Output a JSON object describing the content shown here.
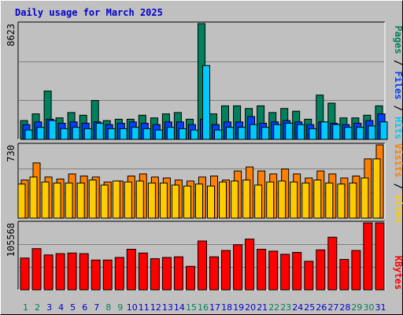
{
  "title": "Daily usage for March 2025",
  "colors": {
    "background": "#c0c0c0",
    "plot": "#c0c0c0",
    "title": "#0000cc",
    "hits": "#00805c",
    "files": "#0040ff",
    "pages": "#00c8ff",
    "visits": "#ff8000",
    "sites": "#ffcc00",
    "kbytes": "#ff0000",
    "weekend_day": "#00805c",
    "weekday": "#0000cc"
  },
  "chart_data": [
    {
      "type": "bar",
      "categories": [
        "1",
        "2",
        "3",
        "4",
        "5",
        "6",
        "7",
        "8",
        "9",
        "10",
        "11",
        "12",
        "13",
        "14",
        "15",
        "16",
        "17",
        "18",
        "19",
        "20",
        "21",
        "22",
        "23",
        "24",
        "25",
        "26",
        "27",
        "28",
        "29",
        "30",
        "31"
      ],
      "weekend_days": [
        "1",
        "2",
        "8",
        "9",
        "15",
        "16",
        "22",
        "23",
        "29",
        "30"
      ],
      "ylim": [
        0,
        8623
      ],
      "ytick_label": "8623",
      "legend": [
        "Hits",
        "Files",
        "Pages"
      ],
      "series": [
        {
          "name": "Hits",
          "values": [
            1400,
            1900,
            3600,
            1600,
            2000,
            1800,
            2900,
            1400,
            1500,
            1500,
            1800,
            1600,
            1900,
            2000,
            1500,
            8623,
            1900,
            2500,
            2500,
            2300,
            2500,
            2000,
            2300,
            2100,
            1500,
            3300,
            2700,
            1600,
            1600,
            1800,
            2500
          ]
        },
        {
          "name": "Files",
          "values": [
            1100,
            1300,
            1500,
            1200,
            1300,
            1200,
            1300,
            1100,
            1200,
            1300,
            1200,
            1100,
            1300,
            1300,
            1100,
            1500,
            1100,
            1300,
            1300,
            1700,
            1200,
            1300,
            1400,
            1300,
            1100,
            1300,
            1200,
            1100,
            1200,
            1400,
            1900
          ]
        },
        {
          "name": "Pages",
          "values": [
            700,
            900,
            1400,
            800,
            900,
            800,
            1200,
            800,
            800,
            900,
            800,
            700,
            900,
            800,
            700,
            5500,
            700,
            900,
            900,
            1100,
            900,
            1100,
            1200,
            1100,
            800,
            1300,
            1100,
            900,
            900,
            1000,
            1300
          ]
        }
      ]
    },
    {
      "type": "bar",
      "categories": [
        "1",
        "2",
        "3",
        "4",
        "5",
        "6",
        "7",
        "8",
        "9",
        "10",
        "11",
        "12",
        "13",
        "14",
        "15",
        "16",
        "17",
        "18",
        "19",
        "20",
        "21",
        "22",
        "23",
        "24",
        "25",
        "26",
        "27",
        "28",
        "29",
        "30",
        "31"
      ],
      "ylim": [
        0,
        730
      ],
      "ytick_label": "730",
      "legend": [
        "Sites",
        "Visits"
      ],
      "series": [
        {
          "name": "Visits",
          "values": [
            380,
            550,
            410,
            390,
            440,
            420,
            410,
            360,
            370,
            420,
            440,
            410,
            400,
            380,
            370,
            410,
            420,
            380,
            470,
            510,
            470,
            440,
            490,
            440,
            400,
            470,
            440,
            400,
            420,
            590,
            730
          ]
        },
        {
          "name": "Sites",
          "values": [
            340,
            410,
            360,
            350,
            350,
            350,
            380,
            330,
            370,
            360,
            370,
            350,
            350,
            330,
            320,
            340,
            320,
            360,
            370,
            380,
            330,
            360,
            370,
            360,
            350,
            380,
            350,
            340,
            350,
            400,
            590
          ]
        }
      ]
    },
    {
      "type": "bar",
      "categories": [
        "1",
        "2",
        "3",
        "4",
        "5",
        "6",
        "7",
        "8",
        "9",
        "10",
        "11",
        "12",
        "13",
        "14",
        "15",
        "16",
        "17",
        "18",
        "19",
        "20",
        "21",
        "22",
        "23",
        "24",
        "25",
        "26",
        "27",
        "28",
        "29",
        "30",
        "31"
      ],
      "ylim": [
        0,
        105568
      ],
      "ytick_label": "105568",
      "legend": [
        "KBytes"
      ],
      "series": [
        {
          "name": "KBytes",
          "values": [
            50000,
            65000,
            55000,
            57000,
            58000,
            57000,
            47000,
            47000,
            51000,
            64000,
            58000,
            49000,
            51000,
            52000,
            37000,
            77000,
            52000,
            62000,
            71000,
            80000,
            64000,
            61000,
            56000,
            59000,
            45000,
            63000,
            83000,
            48000,
            62000,
            105568,
            105568
          ]
        }
      ]
    }
  ]
}
